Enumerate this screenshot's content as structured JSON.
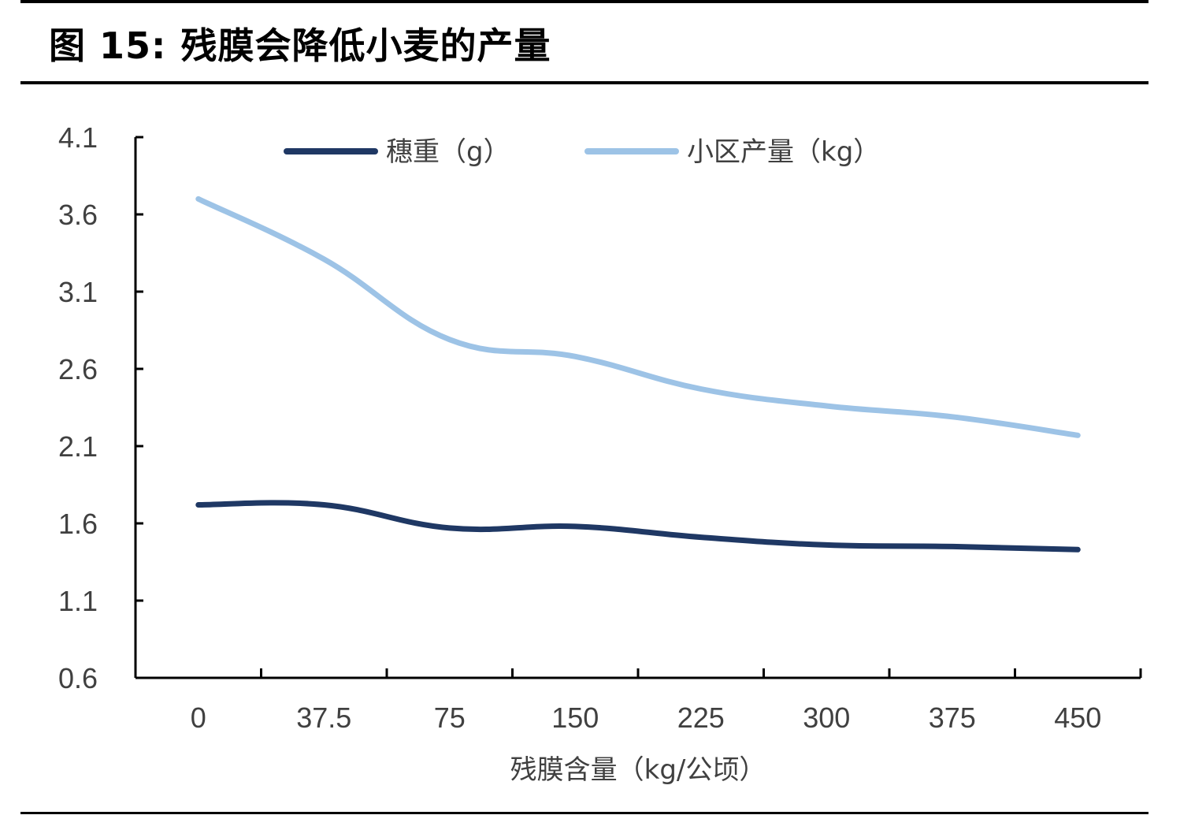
{
  "figure": {
    "label": "图 15:",
    "title": "残膜会降低小麦的产量"
  },
  "chart_data": {
    "type": "line",
    "categories": [
      "0",
      "37.5",
      "75",
      "150",
      "225",
      "300",
      "375",
      "450"
    ],
    "xlabel": "残膜含量（kg/公顷）",
    "ylabel": "",
    "ylim": [
      0.6,
      4.1
    ],
    "yticks": [
      "0.6",
      "1.1",
      "1.6",
      "2.1",
      "2.6",
      "3.1",
      "3.6",
      "4.1"
    ],
    "grid": false,
    "legend_position": "top",
    "series": [
      {
        "name": "穗重（g）",
        "color": "#1f3864",
        "values": [
          1.72,
          1.72,
          1.57,
          1.58,
          1.51,
          1.46,
          1.45,
          1.43
        ]
      },
      {
        "name": "小区产量（kg）",
        "color": "#9dc3e6",
        "values": [
          3.7,
          3.31,
          2.79,
          2.68,
          2.47,
          2.36,
          2.29,
          2.17
        ]
      }
    ]
  }
}
